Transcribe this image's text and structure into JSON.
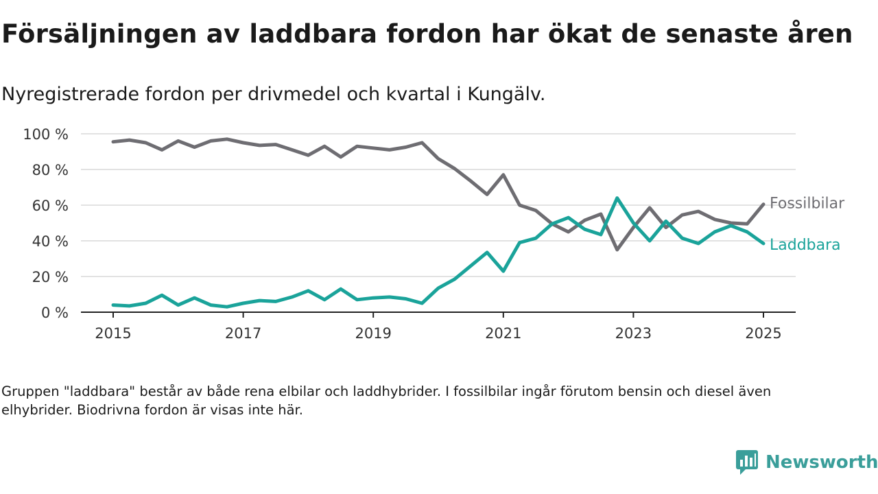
{
  "title": "Försäljningen av laddbara fordon har ökat de senaste åren",
  "subtitle": "Nyregistrerade fordon per drivmedel och kvartal i Kungälv.",
  "note": "Gruppen \"laddbara\" består av både rena elbilar och laddhybrider. I fossilbilar ingår förutom bensin och diesel även elhybrider. Biodrivna fordon är visas inte här.",
  "brand": {
    "name": "Newsworthy",
    "icon": "newsworthy-logo-icon",
    "color": "#3a9e9a"
  },
  "chart_data": {
    "type": "line",
    "title": "",
    "xlabel": "",
    "ylabel": "",
    "x": [
      "2015K1",
      "2015K2",
      "2015K3",
      "2015K4",
      "2016K1",
      "2016K2",
      "2016K3",
      "2016K4",
      "2017K1",
      "2017K2",
      "2017K3",
      "2017K4",
      "2018K1",
      "2018K2",
      "2018K3",
      "2018K4",
      "2019K1",
      "2019K2",
      "2019K3",
      "2019K4",
      "2020K1",
      "2020K2",
      "2020K3",
      "2020K4",
      "2021K1",
      "2021K2",
      "2021K3",
      "2021K4",
      "2022K1",
      "2022K2",
      "2022K3",
      "2022K4",
      "2023K1",
      "2023K2",
      "2023K3",
      "2023K4",
      "2024K1",
      "2024K2",
      "2024K3",
      "2024K4",
      "2025K1"
    ],
    "x_ticks": [
      "2015",
      "2017",
      "2019",
      "2021",
      "2023",
      "2025"
    ],
    "y_ticks": [
      "0 %",
      "20 %",
      "40 %",
      "60 %",
      "80 %",
      "100 %"
    ],
    "ylim": [
      0,
      100
    ],
    "grid": true,
    "legend": "inline labels at line ends",
    "series": [
      {
        "name": "Fossilbilar",
        "color": "#6e6d72",
        "values": [
          95.5,
          96.5,
          95,
          91,
          96,
          92.5,
          96,
          97,
          95,
          93.5,
          94,
          91,
          88,
          93,
          87,
          93,
          92,
          91,
          92.5,
          95,
          86,
          80.5,
          73.5,
          66,
          77,
          60,
          57,
          49.5,
          45,
          51.5,
          55,
          35,
          47.5,
          58.5,
          47.5,
          54.5,
          56.5,
          52,
          50,
          49.5,
          60.5
        ]
      },
      {
        "name": "Laddbara",
        "color": "#1aa39a",
        "values": [
          4,
          3.5,
          5,
          9.5,
          4,
          8,
          4,
          3,
          5,
          6.5,
          6,
          8.5,
          12,
          7,
          13,
          7,
          8,
          8.5,
          7.5,
          5,
          13.5,
          18.5,
          26,
          33.5,
          23,
          39,
          41.5,
          49.5,
          53,
          46.5,
          43.5,
          64,
          50,
          40,
          51,
          41.5,
          38.5,
          45,
          48.5,
          45,
          38.5
        ]
      }
    ]
  }
}
